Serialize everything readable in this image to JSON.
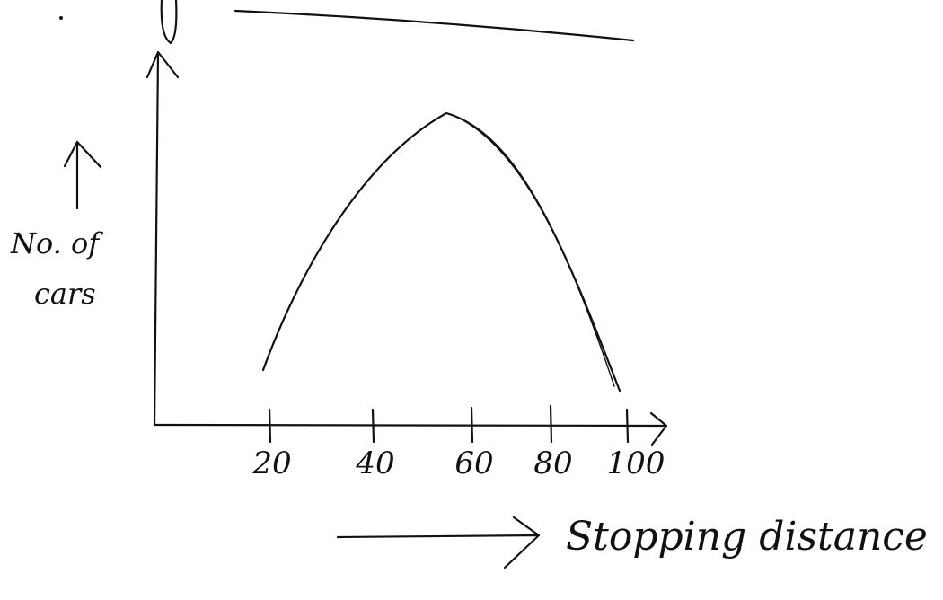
{
  "y_axis_label": {
    "lines": [
      "No. of",
      "cars"
    ]
  },
  "x_axis_label": "Stopping distance",
  "x_tick_labels": [
    "20",
    "40",
    "60",
    "80",
    "100"
  ]
}
